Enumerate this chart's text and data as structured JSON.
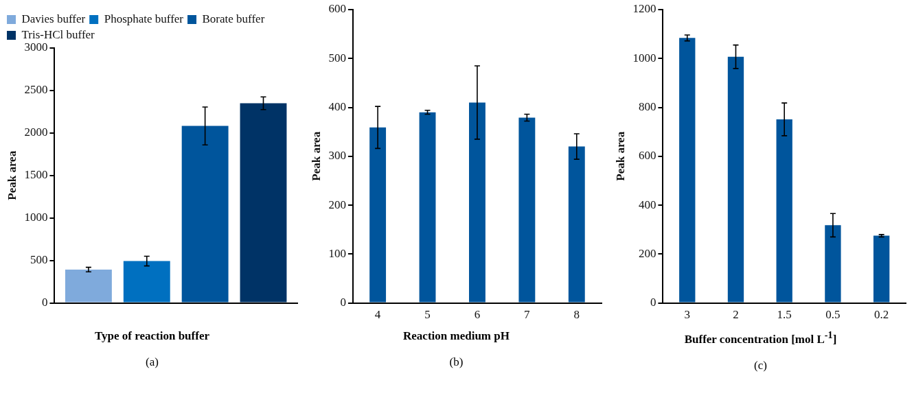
{
  "chart_data": [
    {
      "type": "bar",
      "categories": [
        null
      ],
      "xlabel": "Type of reaction buffer",
      "ylabel": "Peak area",
      "ylim": [
        0,
        3000
      ],
      "yticks": [
        0,
        500,
        1000,
        1500,
        2000,
        2500,
        3000
      ],
      "grid": false,
      "legend": "top left",
      "annotations": [
        "(a)"
      ],
      "series": [
        {
          "name": "Davies buffer",
          "color": "#7faadc",
          "values": [
            393
          ],
          "errors": [
            27
          ]
        },
        {
          "name": "Phosphate buffer",
          "color": "#0070c0",
          "values": [
            493
          ],
          "errors": [
            57
          ]
        },
        {
          "name": "Borate buffer",
          "color": "#00559c",
          "values": [
            2083
          ],
          "errors": [
            223
          ]
        },
        {
          "name": "Tris-HCl buffer",
          "color": "#003366",
          "values": [
            2350
          ],
          "errors": [
            75
          ]
        }
      ]
    },
    {
      "type": "bar",
      "categories": [
        "4",
        "5",
        "6",
        "7",
        "8"
      ],
      "xlabel": "Reaction medium pH",
      "ylabel": "Peak area",
      "ylim": [
        0,
        600
      ],
      "yticks": [
        0,
        100,
        200,
        300,
        400,
        500,
        600
      ],
      "grid": false,
      "legend": false,
      "annotations": [
        "(b)"
      ],
      "color": "#00559c",
      "values": [
        359,
        390,
        410,
        379,
        320
      ],
      "errors": [
        43,
        4,
        75,
        7,
        26
      ]
    },
    {
      "type": "bar",
      "categories": [
        "3",
        "2",
        "1.5",
        "0.5",
        "0.2"
      ],
      "xlabel": "Buffer concentration [mol L$^{-1}$]",
      "ylabel": "Peak area",
      "ylim": [
        0,
        1200
      ],
      "yticks": [
        0,
        200,
        400,
        600,
        800,
        1000,
        1200
      ],
      "grid": false,
      "legend": false,
      "annotations": [
        "(c)"
      ],
      "color": "#00559c",
      "values": [
        1084,
        1007,
        751,
        318,
        275
      ],
      "errors": [
        12,
        48,
        67,
        48,
        5
      ]
    }
  ]
}
